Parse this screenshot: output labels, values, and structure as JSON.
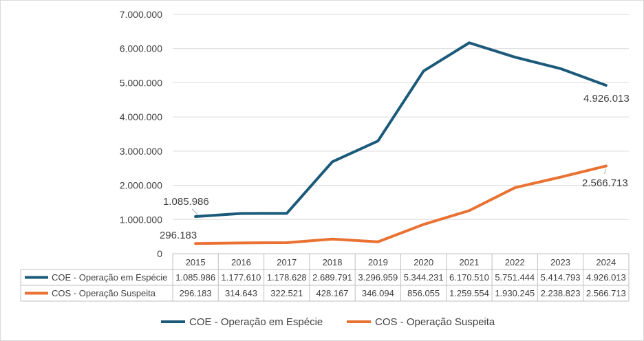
{
  "chart_data": {
    "type": "line",
    "title": "",
    "xlabel": "",
    "ylabel": "",
    "ylim": [
      0,
      7000000
    ],
    "ytick_values": [
      0,
      1000000,
      2000000,
      3000000,
      4000000,
      5000000,
      6000000,
      7000000
    ],
    "ytick_labels": [
      "0",
      "1.000.000",
      "2.000.000",
      "3.000.000",
      "4.000.000",
      "5.000.000",
      "6.000.000",
      "7.000.000"
    ],
    "grid": true,
    "legend": "bottom",
    "categories": [
      "2015",
      "2016",
      "2017",
      "2018",
      "2019",
      "2020",
      "2021",
      "2022",
      "2023",
      "2024"
    ],
    "series": [
      {
        "name": "COE - Operação em Espécie",
        "color": "#1b5a7a",
        "values": [
          1085986,
          1177610,
          1178628,
          2689791,
          3296959,
          5344231,
          6170510,
          5751444,
          5414793,
          4926013
        ],
        "labels": [
          "1.085.986",
          "1.177.610",
          "1.178.628",
          "2.689.791",
          "3.296.959",
          "5.344.231",
          "6.170.510",
          "5.751.444",
          "5.414.793",
          "4.926.013"
        ]
      },
      {
        "name": "COS - Operação Suspeita",
        "color": "#e97132",
        "values": [
          296183,
          314643,
          322521,
          428167,
          346094,
          856055,
          1259554,
          1930245,
          2238823,
          2566713
        ],
        "labels": [
          "296.183",
          "314.643",
          "322.521",
          "428.167",
          "346.094",
          "856.055",
          "1.259.554",
          "1.930.245",
          "2.238.823",
          "2.566.713"
        ]
      }
    ],
    "annotations": [
      {
        "series": 0,
        "index": 0,
        "text": "1.085.986"
      },
      {
        "series": 0,
        "index": 9,
        "text": "4.926.013"
      },
      {
        "series": 1,
        "index": 0,
        "text": "296.183"
      },
      {
        "series": 1,
        "index": 9,
        "text": "2.566.713"
      }
    ]
  }
}
